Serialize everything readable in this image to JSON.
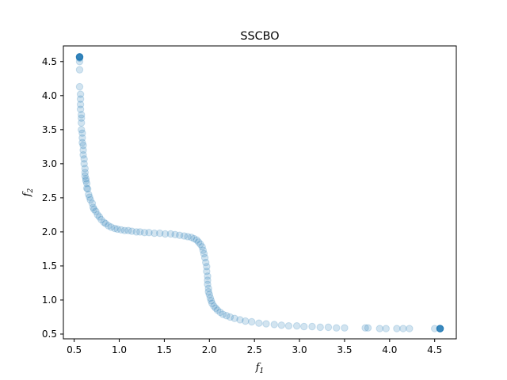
{
  "chart_data": {
    "type": "scatter",
    "title": "SSCBO",
    "xlabel": {
      "base": "f",
      "sub": "1"
    },
    "ylabel": {
      "base": "f",
      "sub": "2"
    },
    "xlim": [
      0.38,
      4.74
    ],
    "ylim": [
      0.43,
      4.73
    ],
    "xticks": [
      0.5,
      1.0,
      1.5,
      2.0,
      2.5,
      3.0,
      3.5,
      4.0,
      4.5
    ],
    "xtick_labels": [
      "0.5",
      "1.0",
      "1.5",
      "2.0",
      "2.5",
      "3.0",
      "3.5",
      "4.0",
      "4.5"
    ],
    "yticks": [
      0.5,
      1.0,
      1.5,
      2.0,
      2.5,
      3.0,
      3.5,
      4.0,
      4.5
    ],
    "ytick_labels": [
      "0.5",
      "1.0",
      "1.5",
      "2.0",
      "2.5",
      "3.0",
      "3.5",
      "4.0",
      "4.5"
    ],
    "grid": false,
    "marker_color": "#1f77b4",
    "marker_alpha": 0.2,
    "series": [
      {
        "points": [
          [
            0.56,
            4.57
          ],
          [
            0.56,
            4.57
          ],
          [
            0.56,
            4.57
          ],
          [
            0.56,
            4.57
          ],
          [
            0.56,
            4.57
          ],
          [
            0.56,
            4.57
          ],
          [
            0.56,
            4.56
          ],
          [
            0.56,
            4.55
          ],
          [
            0.56,
            4.56
          ],
          [
            0.56,
            4.57
          ],
          [
            0.56,
            4.5
          ],
          [
            0.56,
            4.38
          ],
          [
            0.56,
            4.13
          ],
          [
            0.57,
            4.02
          ],
          [
            0.57,
            3.95
          ],
          [
            0.57,
            3.87
          ],
          [
            0.57,
            3.8
          ],
          [
            0.58,
            3.72
          ],
          [
            0.58,
            3.67
          ],
          [
            0.58,
            3.6
          ],
          [
            0.58,
            3.5
          ],
          [
            0.59,
            3.45
          ],
          [
            0.59,
            3.38
          ],
          [
            0.59,
            3.31
          ],
          [
            0.6,
            3.27
          ],
          [
            0.6,
            3.2
          ],
          [
            0.6,
            3.13
          ],
          [
            0.61,
            3.07
          ],
          [
            0.61,
            3.0
          ],
          [
            0.62,
            2.93
          ],
          [
            0.62,
            2.87
          ],
          [
            0.62,
            2.82
          ],
          [
            0.63,
            2.78
          ],
          [
            0.63,
            2.75
          ],
          [
            0.64,
            2.71
          ],
          [
            0.64,
            2.64
          ],
          [
            0.65,
            2.63
          ],
          [
            0.66,
            2.55
          ],
          [
            0.67,
            2.51
          ],
          [
            0.68,
            2.47
          ],
          [
            0.7,
            2.42
          ],
          [
            0.71,
            2.36
          ],
          [
            0.72,
            2.33
          ],
          [
            0.74,
            2.3
          ],
          [
            0.76,
            2.25
          ],
          [
            0.78,
            2.22
          ],
          [
            0.8,
            2.18
          ],
          [
            0.83,
            2.14
          ],
          [
            0.85,
            2.12
          ],
          [
            0.88,
            2.09
          ],
          [
            0.91,
            2.07
          ],
          [
            0.95,
            2.05
          ],
          [
            0.98,
            2.04
          ],
          [
            1.02,
            2.03
          ],
          [
            1.06,
            2.02
          ],
          [
            1.1,
            2.02
          ],
          [
            1.14,
            2.01
          ],
          [
            1.19,
            2.0
          ],
          [
            1.23,
            2.0
          ],
          [
            1.28,
            1.99
          ],
          [
            1.33,
            1.99
          ],
          [
            1.39,
            1.98
          ],
          [
            1.45,
            1.98
          ],
          [
            1.51,
            1.97
          ],
          [
            1.57,
            1.97
          ],
          [
            1.62,
            1.96
          ],
          [
            1.67,
            1.95
          ],
          [
            1.72,
            1.94
          ],
          [
            1.76,
            1.93
          ],
          [
            1.8,
            1.92
          ],
          [
            1.83,
            1.9
          ],
          [
            1.86,
            1.88
          ],
          [
            1.88,
            1.85
          ],
          [
            1.9,
            1.82
          ],
          [
            1.92,
            1.78
          ],
          [
            1.93,
            1.73
          ],
          [
            1.94,
            1.68
          ],
          [
            1.95,
            1.62
          ],
          [
            1.96,
            1.55
          ],
          [
            1.97,
            1.49
          ],
          [
            1.97,
            1.42
          ],
          [
            1.98,
            1.35
          ],
          [
            1.98,
            1.29
          ],
          [
            1.98,
            1.23
          ],
          [
            1.99,
            1.17
          ],
          [
            1.99,
            1.12
          ],
          [
            2.0,
            1.08
          ],
          [
            2.01,
            1.03
          ],
          [
            2.02,
            0.99
          ],
          [
            2.03,
            0.95
          ],
          [
            2.05,
            0.91
          ],
          [
            2.07,
            0.88
          ],
          [
            2.09,
            0.85
          ],
          [
            2.12,
            0.82
          ],
          [
            2.15,
            0.79
          ],
          [
            2.19,
            0.77
          ],
          [
            2.23,
            0.75
          ],
          [
            2.28,
            0.73
          ],
          [
            2.34,
            0.71
          ],
          [
            2.4,
            0.69
          ],
          [
            2.47,
            0.68
          ],
          [
            2.55,
            0.66
          ],
          [
            2.63,
            0.65
          ],
          [
            2.72,
            0.64
          ],
          [
            2.8,
            0.63
          ],
          [
            2.88,
            0.62
          ],
          [
            2.97,
            0.62
          ],
          [
            3.05,
            0.61
          ],
          [
            3.14,
            0.61
          ],
          [
            3.23,
            0.6
          ],
          [
            3.32,
            0.6
          ],
          [
            3.41,
            0.59
          ],
          [
            3.5,
            0.59
          ],
          [
            3.73,
            0.59
          ],
          [
            3.76,
            0.59
          ],
          [
            3.89,
            0.58
          ],
          [
            3.96,
            0.58
          ],
          [
            4.08,
            0.58
          ],
          [
            4.15,
            0.58
          ],
          [
            4.22,
            0.58
          ],
          [
            4.5,
            0.58
          ],
          [
            4.56,
            0.58
          ],
          [
            4.56,
            0.58
          ],
          [
            4.56,
            0.58
          ],
          [
            4.56,
            0.58
          ],
          [
            4.56,
            0.58
          ],
          [
            4.56,
            0.58
          ],
          [
            4.56,
            0.58
          ],
          [
            4.56,
            0.58
          ],
          [
            4.56,
            0.58
          ]
        ]
      }
    ]
  }
}
